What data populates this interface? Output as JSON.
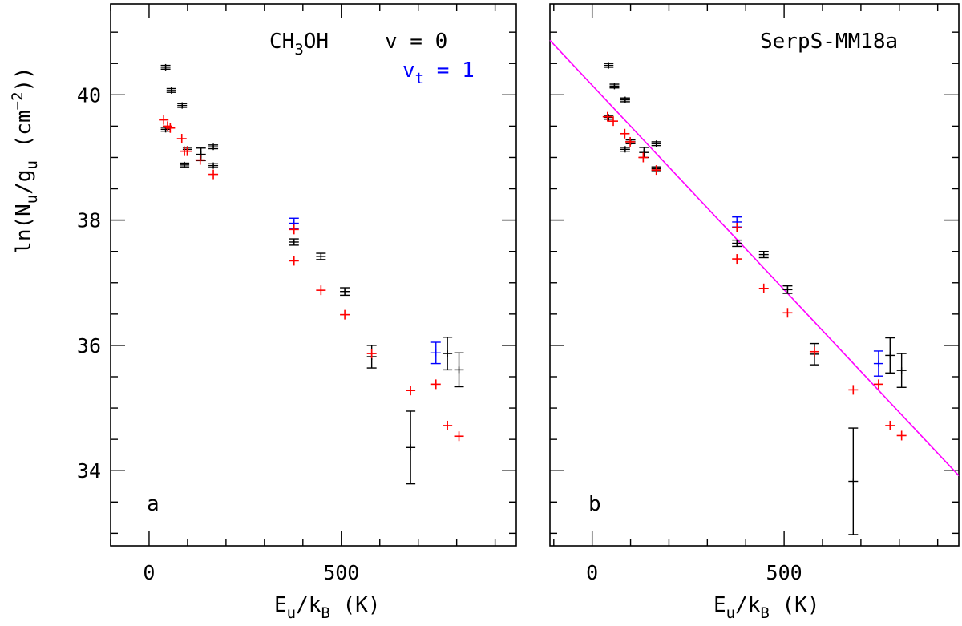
{
  "chart_data": [
    {
      "type": "scatter",
      "panel_label": "a",
      "annotation": {
        "species": "CH3OH",
        "state_labels": [
          {
            "text": "v = 0",
            "color": "#000000"
          },
          {
            "text": "vt = 1",
            "color": "#0000ff"
          }
        ]
      },
      "xlabel": "Eu/kB (K)",
      "ylabel": "ln(Nu/gu (cm^-2))",
      "xlim": [
        -100,
        955
      ],
      "ylim": [
        32.8,
        41.45
      ],
      "xticks": [
        0,
        500
      ],
      "yticks": [
        34,
        36,
        38,
        40
      ],
      "series": [
        {
          "color": "#000000",
          "kind": "points-with-errorbars",
          "points": [
            {
              "x": 43,
              "y": 40.44,
              "err": 0.03
            },
            {
              "x": 43,
              "y": 39.45,
              "err": 0.03
            },
            {
              "x": 58,
              "y": 40.07,
              "err": 0.03
            },
            {
              "x": 86,
              "y": 39.83,
              "err": 0.03
            },
            {
              "x": 92,
              "y": 38.88,
              "err": 0.03
            },
            {
              "x": 100,
              "y": 39.13,
              "err": 0.03
            },
            {
              "x": 135,
              "y": 39.05,
              "err": 0.1
            },
            {
              "x": 167,
              "y": 39.17,
              "err": 0.03
            },
            {
              "x": 167,
              "y": 38.87,
              "err": 0.03
            },
            {
              "x": 377,
              "y": 37.65,
              "err": 0.05
            },
            {
              "x": 447,
              "y": 37.42,
              "err": 0.05
            },
            {
              "x": 509,
              "y": 36.86,
              "err": 0.06
            },
            {
              "x": 579,
              "y": 35.82,
              "err": 0.18
            },
            {
              "x": 680,
              "y": 34.37,
              "err": 0.58
            },
            {
              "x": 776,
              "y": 35.87,
              "err": 0.26
            },
            {
              "x": 806,
              "y": 35.61,
              "err": 0.27
            }
          ]
        },
        {
          "color": "#0000ff",
          "kind": "points-with-errorbars",
          "points": [
            {
              "x": 377,
              "y": 37.95,
              "err": 0.08
            },
            {
              "x": 746,
              "y": 35.88,
              "err": 0.17
            }
          ]
        },
        {
          "color": "#ff0000",
          "kind": "plus-markers",
          "points": [
            {
              "x": 38,
              "y": 39.6
            },
            {
              "x": 48,
              "y": 39.5
            },
            {
              "x": 55,
              "y": 39.47
            },
            {
              "x": 85,
              "y": 39.3
            },
            {
              "x": 92,
              "y": 39.1
            },
            {
              "x": 99,
              "y": 39.1
            },
            {
              "x": 133,
              "y": 38.96
            },
            {
              "x": 167,
              "y": 38.73
            },
            {
              "x": 377,
              "y": 37.85
            },
            {
              "x": 377,
              "y": 37.35
            },
            {
              "x": 447,
              "y": 36.88
            },
            {
              "x": 509,
              "y": 36.49
            },
            {
              "x": 579,
              "y": 35.87
            },
            {
              "x": 680,
              "y": 35.28
            },
            {
              "x": 746,
              "y": 35.38
            },
            {
              "x": 776,
              "y": 34.72
            },
            {
              "x": 806,
              "y": 34.55
            }
          ]
        }
      ]
    },
    {
      "type": "scatter",
      "panel_label": "b",
      "annotation": {
        "source": "SerpS-MM18a"
      },
      "xlabel": "Eu/kB (K)",
      "ylabel": "",
      "xlim": [
        -110,
        955
      ],
      "ylim": [
        32.8,
        41.45
      ],
      "xticks": [
        0,
        500
      ],
      "yticks": [
        34,
        36,
        38,
        40
      ],
      "fit_line": {
        "color": "#ff00ff",
        "x": [
          -110,
          955
        ],
        "y": [
          40.87,
          33.92
        ]
      },
      "series": [
        {
          "color": "#000000",
          "kind": "points-with-errorbars",
          "points": [
            {
              "x": 43,
              "y": 40.47,
              "err": 0.03
            },
            {
              "x": 43,
              "y": 39.64,
              "err": 0.03
            },
            {
              "x": 58,
              "y": 40.14,
              "err": 0.03
            },
            {
              "x": 86,
              "y": 39.92,
              "err": 0.03
            },
            {
              "x": 86,
              "y": 39.13,
              "err": 0.03
            },
            {
              "x": 100,
              "y": 39.25,
              "err": 0.03
            },
            {
              "x": 135,
              "y": 39.08,
              "err": 0.08
            },
            {
              "x": 167,
              "y": 39.22,
              "err": 0.03
            },
            {
              "x": 167,
              "y": 38.82,
              "err": 0.03
            },
            {
              "x": 377,
              "y": 37.63,
              "err": 0.05
            },
            {
              "x": 447,
              "y": 37.45,
              "err": 0.05
            },
            {
              "x": 509,
              "y": 36.89,
              "err": 0.06
            },
            {
              "x": 579,
              "y": 35.86,
              "err": 0.17
            },
            {
              "x": 680,
              "y": 33.83,
              "err": 0.85
            },
            {
              "x": 776,
              "y": 35.84,
              "err": 0.28
            },
            {
              "x": 806,
              "y": 35.6,
              "err": 0.27
            }
          ]
        },
        {
          "color": "#0000ff",
          "kind": "points-with-errorbars",
          "points": [
            {
              "x": 377,
              "y": 37.97,
              "err": 0.08
            },
            {
              "x": 746,
              "y": 35.71,
              "err": 0.2
            }
          ]
        },
        {
          "color": "#ff0000",
          "kind": "plus-markers",
          "points": [
            {
              "x": 40,
              "y": 39.65
            },
            {
              "x": 55,
              "y": 39.58
            },
            {
              "x": 85,
              "y": 39.38
            },
            {
              "x": 99,
              "y": 39.25
            },
            {
              "x": 133,
              "y": 39.0
            },
            {
              "x": 167,
              "y": 38.8
            },
            {
              "x": 377,
              "y": 37.88
            },
            {
              "x": 377,
              "y": 37.38
            },
            {
              "x": 447,
              "y": 36.91
            },
            {
              "x": 509,
              "y": 36.52
            },
            {
              "x": 579,
              "y": 35.9
            },
            {
              "x": 680,
              "y": 35.29
            },
            {
              "x": 746,
              "y": 35.38
            },
            {
              "x": 776,
              "y": 34.72
            },
            {
              "x": 806,
              "y": 34.56
            }
          ]
        }
      ]
    }
  ]
}
